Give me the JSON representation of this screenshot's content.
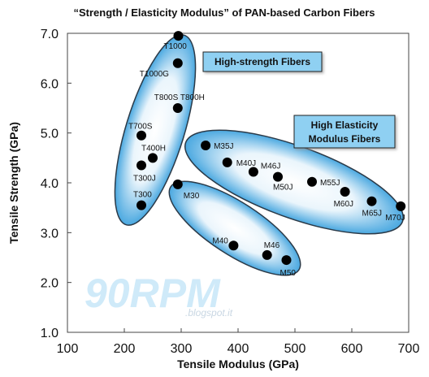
{
  "chart_data": {
    "type": "scatter",
    "title": "“Strength / Elasticity Modulus” of PAN-based Carbon Fibers",
    "xlabel": "Tensile Modulus (GPa)",
    "ylabel": "Tensile Strength (GPa)",
    "xlim": [
      100,
      700
    ],
    "ylim": [
      1.0,
      7.0
    ],
    "xticks": [
      "100",
      "200",
      "300",
      "400",
      "500",
      "600",
      "700"
    ],
    "yticks": [
      "1.0",
      "2.0",
      "3.0",
      "4.0",
      "5.0",
      "6.0",
      "7.0"
    ],
    "grid": false,
    "points": [
      {
        "label": "T1000",
        "x": 295,
        "y": 6.95
      },
      {
        "label": "T1000G",
        "x": 294,
        "y": 6.4
      },
      {
        "label": "T800S T800H",
        "x": 294,
        "y": 5.5
      },
      {
        "label": "T700S",
        "x": 230,
        "y": 4.95
      },
      {
        "label": "T400H",
        "x": 250,
        "y": 4.5
      },
      {
        "label": "T300J",
        "x": 230,
        "y": 4.35
      },
      {
        "label": "T300",
        "x": 230,
        "y": 3.55
      },
      {
        "label": "M30",
        "x": 294,
        "y": 3.97
      },
      {
        "label": "M35J",
        "x": 343,
        "y": 4.75
      },
      {
        "label": "M40J",
        "x": 381,
        "y": 4.41
      },
      {
        "label": "M46J",
        "x": 427,
        "y": 4.22
      },
      {
        "label": "M50J",
        "x": 470,
        "y": 4.12
      },
      {
        "label": "M55J",
        "x": 530,
        "y": 4.02
      },
      {
        "label": "M60J",
        "x": 588,
        "y": 3.82
      },
      {
        "label": "M65J",
        "x": 635,
        "y": 3.63
      },
      {
        "label": "M70J",
        "x": 686,
        "y": 3.53
      },
      {
        "label": "M40",
        "x": 392,
        "y": 2.74
      },
      {
        "label": "M46",
        "x": 451,
        "y": 2.55
      },
      {
        "label": "M50",
        "x": 485,
        "y": 2.45
      }
    ],
    "groups": [
      {
        "label": "High-strength Fibers"
      },
      {
        "label_lines": [
          "High Elasticity",
          "Modulus Fibers"
        ]
      }
    ]
  },
  "watermark": {
    "main": "90RPM",
    "sub": ".blogspot.it"
  },
  "colors": {
    "ellipse_stroke": "#2b3a48",
    "ellipse_fill": "#4aa8e0",
    "label_box": "#8fd0f2",
    "dot": "#000000"
  }
}
